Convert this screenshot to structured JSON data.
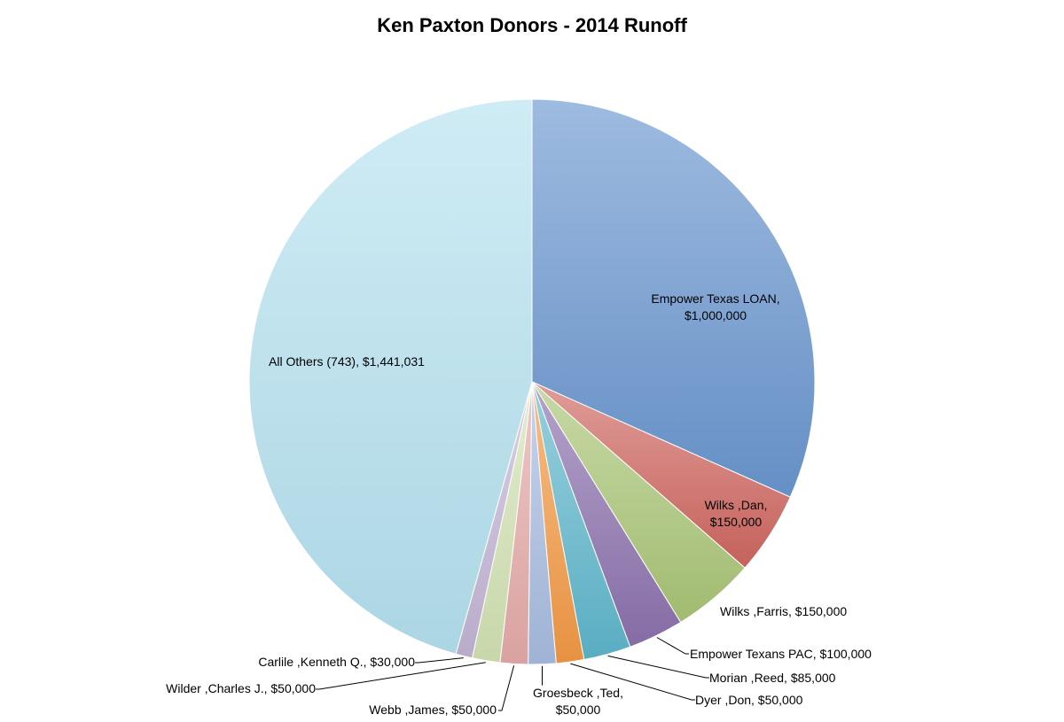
{
  "chart_data": {
    "type": "pie",
    "title": "Ken Paxton Donors - 2014 Runoff",
    "start": "top",
    "direction": "clockwise",
    "slices": [
      {
        "name": "Empower Texas LOAN",
        "value": 1000000,
        "label_lines": [
          "Empower Texas LOAN,",
          "$1,000,000"
        ],
        "color": "#6a97cf"
      },
      {
        "name": "Wilks ,Dan",
        "value": 150000,
        "label_lines": [
          "Wilks ,Dan,",
          "$150,000"
        ],
        "color": "#cf6660"
      },
      {
        "name": "Wilks ,Farris",
        "value": 150000,
        "label_lines": [
          "Wilks ,Farris,  $150,000"
        ],
        "color": "#a9c576"
      },
      {
        "name": "Empower Texans PAC",
        "value": 100000,
        "label_lines": [
          "Empower Texans PAC,  $100,000"
        ],
        "color": "#8c72ae"
      },
      {
        "name": "Morian ,Reed",
        "value": 85000,
        "label_lines": [
          "Morian ,Reed,  $85,000"
        ],
        "color": "#5fb6cc"
      },
      {
        "name": "Dyer ,Don",
        "value": 50000,
        "label_lines": [
          "Dyer ,Don,  $50,000"
        ],
        "color": "#f39a45"
      },
      {
        "name": "Groesbeck ,Ted",
        "value": 50000,
        "label_lines": [
          "Groesbeck ,Ted,",
          "$50,000"
        ],
        "color": "#a8bce0"
      },
      {
        "name": "Webb ,James",
        "value": 50000,
        "label_lines": [
          "Webb ,James,  $50,000"
        ],
        "color": "#e4aaa8"
      },
      {
        "name": "Wilder ,Charles J.",
        "value": 50000,
        "label_lines": [
          "Wilder ,Charles J.,  $50,000"
        ],
        "color": "#d2e2b3"
      },
      {
        "name": "Carlile ,Kenneth Q.",
        "value": 30000,
        "label_lines": [
          "Carlile ,Kenneth Q.,  $30,000"
        ],
        "color": "#c3b5d6"
      },
      {
        "name": "All Others (743)",
        "value": 1441031,
        "label_lines": [
          "All Others (743),  $1,441,031"
        ],
        "color": "#b5e1f0"
      }
    ]
  }
}
